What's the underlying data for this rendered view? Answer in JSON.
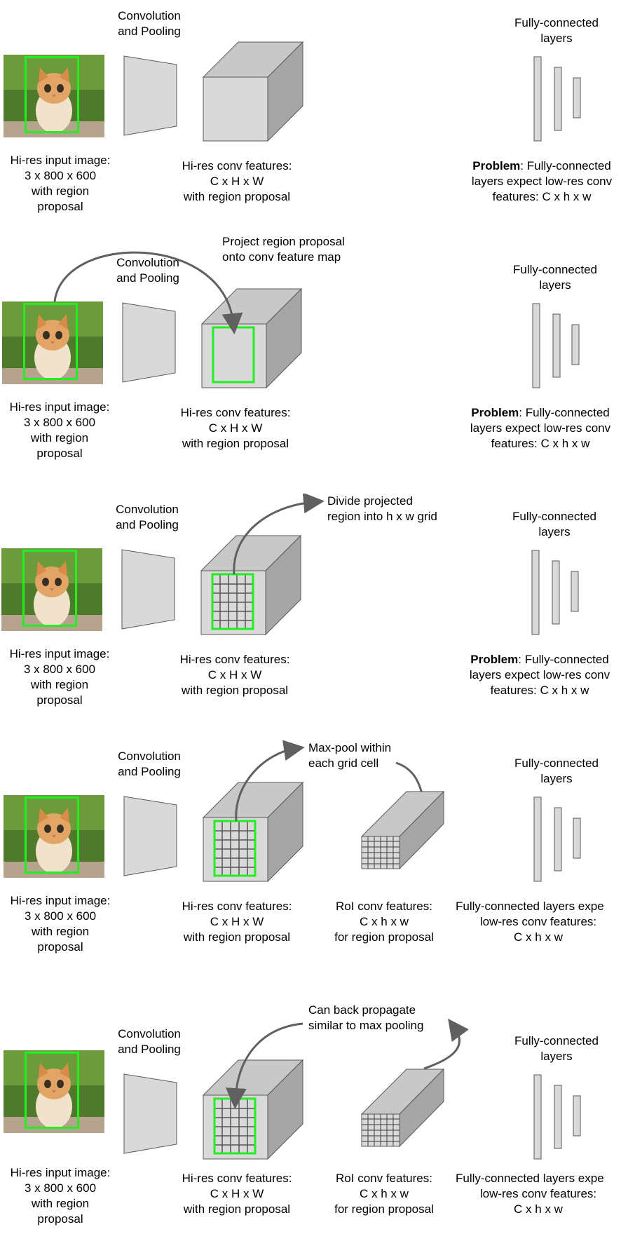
{
  "panels": [
    {
      "conv_pool": [
        "Convolution",
        "and Pooling"
      ],
      "fc_title": [
        "Fully-connected",
        "layers"
      ],
      "input_caption": [
        "Hi-res input image:",
        "3 x 800 x 600",
        "with region",
        "proposal"
      ],
      "conv_caption": [
        "Hi-res conv features:",
        "C x H x W",
        "with region proposal"
      ],
      "fc_caption": {
        "bold": "Problem",
        "rest": ": Fully-connected",
        "line2": "layers expect low-res conv",
        "line3": "features: C x h x w"
      }
    },
    {
      "conv_pool": [
        "Convolution",
        "and Pooling"
      ],
      "fc_title": [
        "Fully-connected",
        "layers"
      ],
      "input_caption": [
        "Hi-res input image:",
        "3 x 800 x 600",
        "with region",
        "proposal"
      ],
      "conv_caption": [
        "Hi-res conv features:",
        "C x H x W",
        "with region proposal"
      ],
      "fc_caption": {
        "bold": "Problem",
        "rest": ": Fully-connected",
        "line2": "layers expect low-res conv",
        "line3": "features: C x h x w"
      },
      "annotation": [
        "Project region proposal",
        "onto conv feature map"
      ]
    },
    {
      "conv_pool": [
        "Convolution",
        "and Pooling"
      ],
      "fc_title": [
        "Fully-connected",
        "layers"
      ],
      "input_caption": [
        "Hi-res input image:",
        "3 x 800 x 600",
        "with region",
        "proposal"
      ],
      "conv_caption": [
        "Hi-res conv features:",
        "C x H x W",
        "with region proposal"
      ],
      "fc_caption": {
        "bold": "Problem",
        "rest": ": Fully-connected",
        "line2": "layers expect low-res conv",
        "line3": "features: C x h x w"
      },
      "annotation": [
        "Divide projected",
        "region into h x w grid"
      ]
    },
    {
      "conv_pool": [
        "Convolution",
        "and Pooling"
      ],
      "fc_title": [
        "Fully-connected",
        "layers"
      ],
      "input_caption": [
        "Hi-res input image:",
        "3 x 800 x 600",
        "with region",
        "proposal"
      ],
      "conv_caption": [
        "Hi-res conv features:",
        "C x H x W",
        "with region proposal"
      ],
      "roi_caption": [
        "RoI conv features:",
        "C x h x w",
        "for region proposal"
      ],
      "fc_caption2": [
        "Fully-connected layers expe",
        "low-res conv features:",
        "C x h x w"
      ],
      "annotation": [
        "Max-pool within",
        "each grid cell"
      ]
    },
    {
      "conv_pool": [
        "Convolution",
        "and Pooling"
      ],
      "fc_title": [
        "Fully-connected",
        "layers"
      ],
      "input_caption": [
        "Hi-res input image:",
        "3 x 800 x 600",
        "with region",
        "proposal"
      ],
      "conv_caption": [
        "Hi-res conv features:",
        "C x H x W",
        "with region proposal"
      ],
      "roi_caption": [
        "RoI conv features:",
        "C x h x w",
        "for region proposal"
      ],
      "fc_caption2": [
        "Fully-connected layers expe",
        "low-res conv features:",
        "C x h x w"
      ],
      "annotation": [
        "Can back propagate",
        "similar to max pooling"
      ]
    }
  ],
  "colors": {
    "box_fill": "#d9d9d9",
    "box_side": "#a6a6a6",
    "box_top": "#c8c8c8",
    "stroke": "#595959",
    "region": "#22ee22",
    "arrow": "#606060"
  }
}
